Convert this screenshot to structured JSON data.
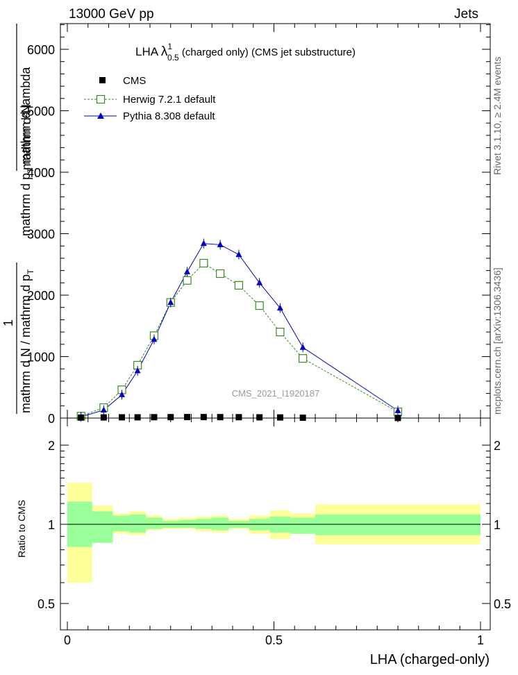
{
  "header": {
    "left": "13000 GeV pp",
    "right": "Jets"
  },
  "side_text": {
    "rivet": "Rivet 3.1.10, ≥ 2.4M events",
    "mcplots": "mcplots.cern.ch [arXiv:1306.3436]"
  },
  "title": {
    "prefix": "LHA ",
    "lambda": "λ",
    "sup": "1",
    "sub": "0.5",
    "suffix": " (charged only) (CMS jet substructure)"
  },
  "legend": [
    {
      "label": "CMS",
      "color": "#000000",
      "marker": "square-filled"
    },
    {
      "label": "Herwig 7.2.1 default",
      "color": "#3a8a1e",
      "marker": "square-open",
      "dash": true
    },
    {
      "label": "Pythia 8.308 default",
      "color": "#0000c0",
      "marker": "triangle"
    }
  ],
  "watermark": "CMS_2021_I1920187",
  "main_ylabel": {
    "top_num": "mathrm d²N",
    "top_den": "mathrm d p",
    "top_den_sub": "T",
    "top_den_tail": " mathrm d lambda",
    "one": "1",
    "bottom": "mathrm d N / mathrm d p",
    "bottom_sub": "T"
  },
  "ratio_ylabel": "Ratio to CMS",
  "xlabel": "LHA (charged-only)",
  "x_ticks": [
    "0",
    "0.5",
    "1"
  ],
  "main_y_ticks": [
    "0",
    "1000",
    "2000",
    "3000",
    "4000",
    "5000",
    "6000"
  ],
  "ratio_y_ticks": [
    "0.5",
    "1",
    "2"
  ],
  "colors": {
    "herwig": "#3a8a1e",
    "pythia": "#0000c0",
    "cms": "#000000",
    "band_inner": "#99ff99",
    "band_outer": "#ffff99"
  },
  "chart_data": {
    "type": "line",
    "xlim": [
      0,
      1
    ],
    "ylim": [
      0,
      6000
    ],
    "ratio_ylim": [
      0.5,
      2
    ],
    "ratio_log": true,
    "cms_points": [
      {
        "x": 0.033,
        "y": 8
      },
      {
        "x": 0.088,
        "y": 10
      },
      {
        "x": 0.132,
        "y": 12
      },
      {
        "x": 0.17,
        "y": 12
      },
      {
        "x": 0.21,
        "y": 14
      },
      {
        "x": 0.25,
        "y": 15
      },
      {
        "x": 0.29,
        "y": 16
      },
      {
        "x": 0.33,
        "y": 16
      },
      {
        "x": 0.37,
        "y": 15
      },
      {
        "x": 0.415,
        "y": 14
      },
      {
        "x": 0.465,
        "y": 12
      },
      {
        "x": 0.515,
        "y": 10
      },
      {
        "x": 0.57,
        "y": 6
      },
      {
        "x": 0.8,
        "y": 2
      }
    ],
    "series": [
      {
        "name": "Herwig 7.2.1 default",
        "x": [
          0.033,
          0.088,
          0.132,
          0.17,
          0.21,
          0.25,
          0.29,
          0.33,
          0.37,
          0.415,
          0.465,
          0.515,
          0.57,
          0.8
        ],
        "y": [
          30,
          170,
          460,
          860,
          1340,
          1880,
          2240,
          2520,
          2350,
          2160,
          1830,
          1400,
          970,
          100
        ]
      },
      {
        "name": "Pythia 8.308 default",
        "x": [
          0.033,
          0.088,
          0.132,
          0.17,
          0.21,
          0.25,
          0.29,
          0.33,
          0.37,
          0.415,
          0.465,
          0.515,
          0.57,
          0.8
        ],
        "y": [
          20,
          130,
          380,
          770,
          1280,
          1880,
          2380,
          2840,
          2820,
          2660,
          2200,
          1790,
          1150,
          120
        ]
      }
    ],
    "ratio_bands": [
      {
        "x0": 0.0,
        "x1": 0.06,
        "inner": [
          0.82,
          1.22
        ],
        "outer": [
          0.6,
          1.44
        ]
      },
      {
        "x0": 0.06,
        "x1": 0.11,
        "inner": [
          0.85,
          1.12
        ],
        "outer": [
          0.85,
          1.18
        ]
      },
      {
        "x0": 0.11,
        "x1": 0.15,
        "inner": [
          0.94,
          1.08
        ],
        "outer": [
          0.92,
          1.1
        ]
      },
      {
        "x0": 0.15,
        "x1": 0.19,
        "inner": [
          0.93,
          1.09
        ],
        "outer": [
          0.91,
          1.12
        ]
      },
      {
        "x0": 0.19,
        "x1": 0.23,
        "inner": [
          0.96,
          1.06
        ],
        "outer": [
          0.95,
          1.08
        ]
      },
      {
        "x0": 0.23,
        "x1": 0.27,
        "inner": [
          0.97,
          1.03
        ],
        "outer": [
          0.96,
          1.05
        ]
      },
      {
        "x0": 0.27,
        "x1": 0.31,
        "inner": [
          0.97,
          1.04
        ],
        "outer": [
          0.96,
          1.06
        ]
      },
      {
        "x0": 0.31,
        "x1": 0.35,
        "inner": [
          0.96,
          1.05
        ],
        "outer": [
          0.94,
          1.07
        ]
      },
      {
        "x0": 0.35,
        "x1": 0.39,
        "inner": [
          0.95,
          1.06
        ],
        "outer": [
          0.93,
          1.08
        ]
      },
      {
        "x0": 0.39,
        "x1": 0.44,
        "inner": [
          0.97,
          1.03
        ],
        "outer": [
          0.96,
          1.05
        ]
      },
      {
        "x0": 0.44,
        "x1": 0.49,
        "inner": [
          0.95,
          1.05
        ],
        "outer": [
          0.92,
          1.08
        ]
      },
      {
        "x0": 0.49,
        "x1": 0.54,
        "inner": [
          0.93,
          1.07
        ],
        "outer": [
          0.88,
          1.13
        ]
      },
      {
        "x0": 0.54,
        "x1": 0.6,
        "inner": [
          0.92,
          1.06
        ],
        "outer": [
          0.92,
          1.1
        ]
      },
      {
        "x0": 0.6,
        "x1": 1.0,
        "inner": [
          0.91,
          1.09
        ],
        "outer": [
          0.84,
          1.19
        ]
      }
    ]
  }
}
